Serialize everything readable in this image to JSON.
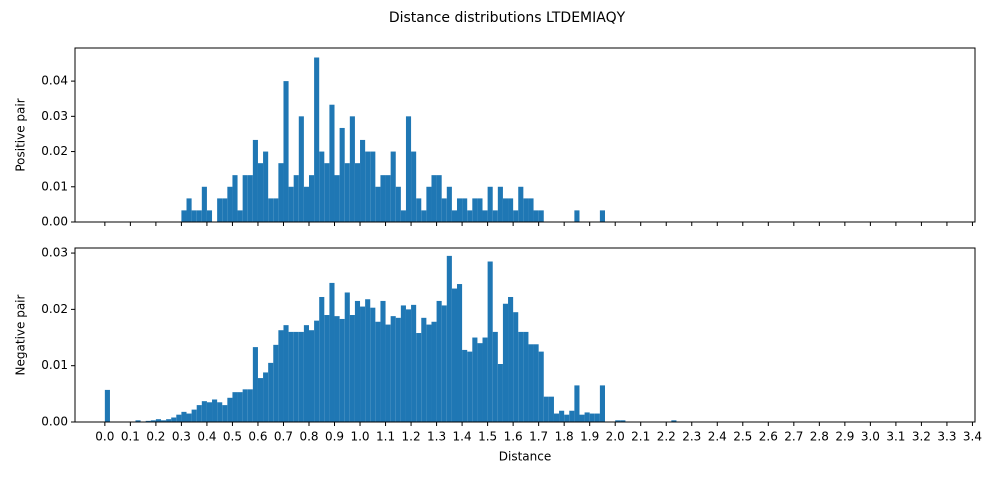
{
  "title": "Distance distributions LTDEMIAQY",
  "chart_data": [
    {
      "type": "histogram",
      "ylabel": "Positive pair",
      "color": "#1f77b4",
      "xlim": [
        -0.117,
        3.41
      ],
      "ylim": [
        0,
        0.0494
      ],
      "yticks": [
        {
          "value": 0,
          "label": "0.00"
        },
        0.01,
        0.02,
        0.03,
        0.04
      ],
      "bins": [
        0.3,
        0.32,
        0.34,
        0.36,
        0.38,
        0.4,
        0.42,
        0.44,
        0.46,
        0.48,
        0.5,
        0.52,
        0.54,
        0.56,
        0.58,
        0.6,
        0.62,
        0.64,
        0.66,
        0.68,
        0.7,
        0.72,
        0.74,
        0.76,
        0.78,
        0.8,
        0.82,
        0.84,
        0.86,
        0.88,
        0.9,
        0.92,
        0.94,
        0.96,
        0.98,
        1.0,
        1.02,
        1.04,
        1.06,
        1.08,
        1.1,
        1.12,
        1.14,
        1.16,
        1.18,
        1.2,
        1.22,
        1.24,
        1.26,
        1.28,
        1.3,
        1.32,
        1.34,
        1.36,
        1.38,
        1.4,
        1.42,
        1.44,
        1.46,
        1.48,
        1.5,
        1.52,
        1.54,
        1.56,
        1.58,
        1.6,
        1.62,
        1.64,
        1.66,
        1.68,
        1.7,
        1.72,
        1.74,
        1.76,
        1.78,
        1.8,
        1.82,
        1.84,
        1.86,
        1.88,
        1.9,
        1.92,
        1.94,
        1.96
      ],
      "values": [
        0.0033,
        0.0067,
        0.0033,
        0.0033,
        0.01,
        0.0033,
        0,
        0.0067,
        0.0067,
        0.01,
        0.0133,
        0.0033,
        0.0133,
        0.0133,
        0.0233,
        0.0167,
        0.02,
        0.0067,
        0.0067,
        0.0167,
        0.04,
        0.01,
        0.0133,
        0.03,
        0.01,
        0.0133,
        0.0467,
        0.02,
        0.0167,
        0.0333,
        0.0133,
        0.0267,
        0.0167,
        0.03,
        0.0167,
        0.0233,
        0.02,
        0.02,
        0.01,
        0.0133,
        0.0133,
        0.02,
        0.01,
        0.0033,
        0.03,
        0.02,
        0.0067,
        0.0033,
        0.01,
        0.0133,
        0.0133,
        0.0067,
        0.01,
        0.0033,
        0.0067,
        0.0067,
        0.0033,
        0.0067,
        0.0067,
        0.0033,
        0.01,
        0.0033,
        0.01,
        0.0067,
        0.0067,
        0.0033,
        0.01,
        0.0067,
        0.0067,
        0.0033,
        0.0033,
        0,
        0,
        0,
        0,
        0,
        0,
        0.0033,
        0,
        0,
        0,
        0,
        0.0033
      ]
    },
    {
      "type": "histogram",
      "xlabel": "Distance",
      "ylabel": "Negative pair",
      "color": "#1f77b4",
      "xlim": [
        -0.117,
        3.41
      ],
      "ylim": [
        0,
        0.0309
      ],
      "xticks": [
        {
          "value": 0,
          "label": "0.0"
        },
        0.1,
        0.2,
        0.3,
        0.4,
        0.5,
        0.6,
        0.7,
        0.8,
        0.9,
        {
          "value": 1,
          "label": "1.0"
        },
        1.1,
        1.2,
        1.3,
        1.4,
        1.5,
        1.6,
        1.7,
        1.8,
        1.9,
        {
          "value": 2,
          "label": "2.0"
        },
        2.1,
        2.2,
        2.3,
        2.4,
        2.5,
        2.6,
        2.7,
        2.8,
        2.9,
        {
          "value": 3,
          "label": "3.0"
        },
        3.1,
        3.2,
        3.3,
        3.4
      ],
      "yticks": [
        {
          "value": 0,
          "label": "0.00"
        },
        0.01,
        0.02,
        0.03
      ],
      "bins": [
        0,
        0.02,
        0.04,
        0.06,
        0.08,
        0.1,
        0.12,
        0.14,
        0.16,
        0.18,
        0.2,
        0.22,
        0.24,
        0.26,
        0.28,
        0.3,
        0.32,
        0.34,
        0.36,
        0.38,
        0.4,
        0.42,
        0.44,
        0.46,
        0.48,
        0.5,
        0.52,
        0.54,
        0.56,
        0.58,
        0.6,
        0.62,
        0.64,
        0.66,
        0.68,
        0.7,
        0.72,
        0.74,
        0.76,
        0.78,
        0.8,
        0.82,
        0.84,
        0.86,
        0.88,
        0.9,
        0.92,
        0.94,
        0.96,
        0.98,
        1.0,
        1.02,
        1.04,
        1.06,
        1.08,
        1.1,
        1.12,
        1.14,
        1.16,
        1.18,
        1.2,
        1.22,
        1.24,
        1.26,
        1.28,
        1.3,
        1.32,
        1.34,
        1.36,
        1.38,
        1.4,
        1.42,
        1.44,
        1.46,
        1.48,
        1.5,
        1.52,
        1.54,
        1.56,
        1.58,
        1.6,
        1.62,
        1.64,
        1.66,
        1.68,
        1.7,
        1.72,
        1.74,
        1.76,
        1.78,
        1.8,
        1.82,
        1.84,
        1.86,
        1.88,
        1.9,
        1.92,
        1.94,
        1.96,
        1.98,
        2.0,
        2.02,
        2.04,
        2.06,
        2.08,
        2.1,
        2.12,
        2.14,
        2.16,
        2.18,
        2.2,
        2.22,
        2.24
      ],
      "values": [
        0.0057,
        0,
        0,
        0,
        0,
        0,
        0.0003,
        0,
        0.0002,
        0.0003,
        0.0005,
        0.0003,
        0.0005,
        0.0008,
        0.0013,
        0.0018,
        0.0015,
        0.0022,
        0.003,
        0.0037,
        0.0035,
        0.004,
        0.0035,
        0.003,
        0.0043,
        0.0053,
        0.0053,
        0.0058,
        0.0058,
        0.0133,
        0.0078,
        0.0088,
        0.0105,
        0.0137,
        0.0163,
        0.0172,
        0.016,
        0.016,
        0.016,
        0.0172,
        0.0163,
        0.018,
        0.0222,
        0.019,
        0.0247,
        0.0188,
        0.0183,
        0.023,
        0.019,
        0.0215,
        0.0205,
        0.0218,
        0.0203,
        0.0178,
        0.0215,
        0.0173,
        0.0188,
        0.0185,
        0.0207,
        0.02,
        0.0208,
        0.0158,
        0.0185,
        0.0173,
        0.0178,
        0.0215,
        0.0207,
        0.0295,
        0.0237,
        0.0245,
        0.0128,
        0.0125,
        0.015,
        0.014,
        0.015,
        0.0285,
        0.016,
        0.0103,
        0.021,
        0.0222,
        0.0195,
        0.016,
        0.016,
        0.0138,
        0.0138,
        0.0125,
        0.0045,
        0.0045,
        0.0015,
        0.002,
        0.0013,
        0.002,
        0.0065,
        0.0013,
        0.0017,
        0.0015,
        0.0015,
        0.0065,
        0,
        0,
        0.0003,
        0.0003,
        0,
        0,
        0,
        0,
        0,
        0,
        0,
        0,
        0,
        0.0003
      ]
    }
  ]
}
